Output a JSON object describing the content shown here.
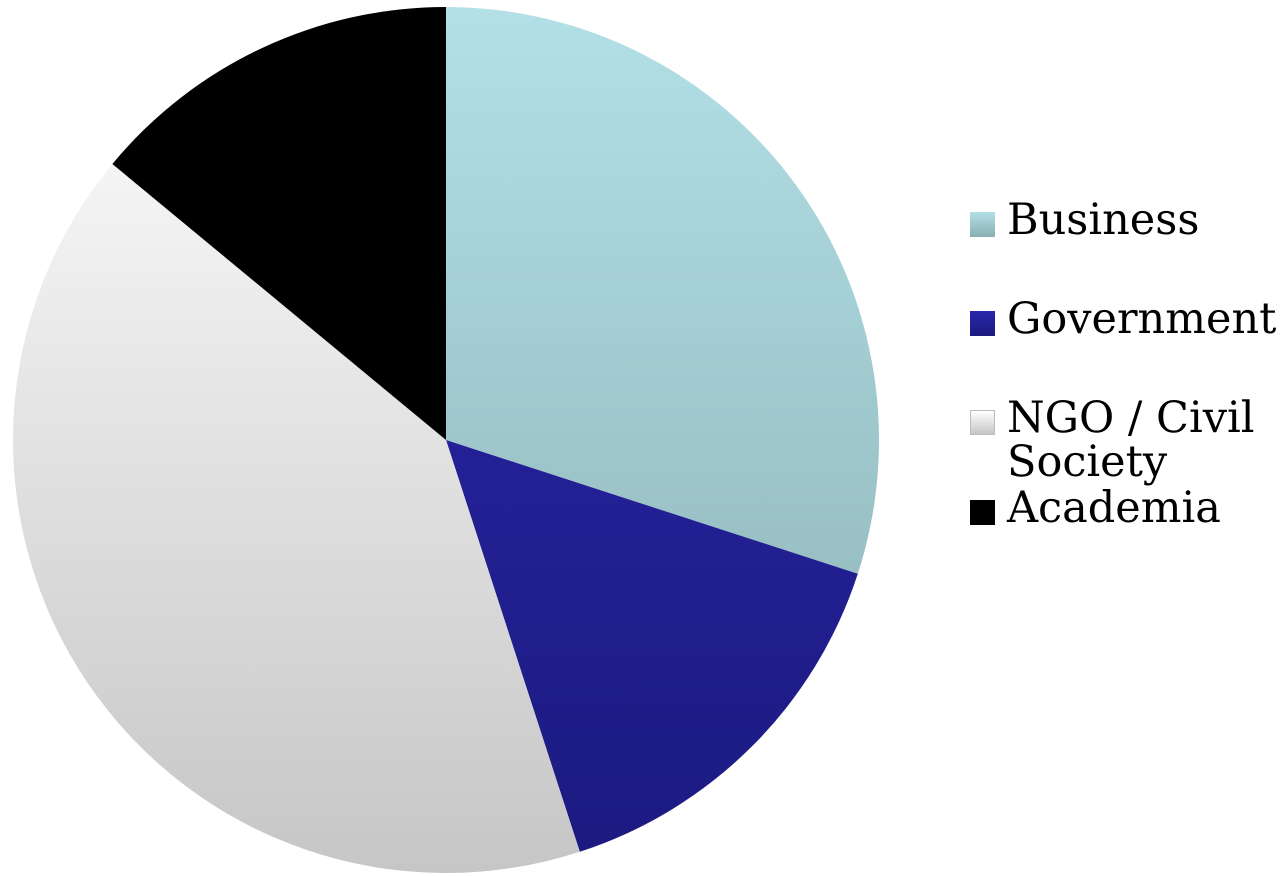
{
  "chart_data": {
    "type": "pie",
    "title": "",
    "categories": [
      "Business",
      "Government",
      "NGO / Civil Society",
      "Academia"
    ],
    "values": [
      30,
      15,
      41,
      14
    ],
    "unit": "%",
    "start_angle_deg": 0,
    "direction": "clockwise",
    "legend_position": "right",
    "legend": [
      {
        "label": "Business",
        "color_top": "#b2e0e6",
        "color_bottom": "#8aaeb2"
      },
      {
        "label": "Government",
        "color_top": "#2b27ad",
        "color_bottom": "#1c1a80"
      },
      {
        "label": "NGO / Civil Society",
        "color_top": "#ffffff",
        "color_bottom": "#c6c6c6"
      },
      {
        "label": "Academia",
        "color_top": "#000000",
        "color_bottom": "#000000"
      }
    ]
  }
}
